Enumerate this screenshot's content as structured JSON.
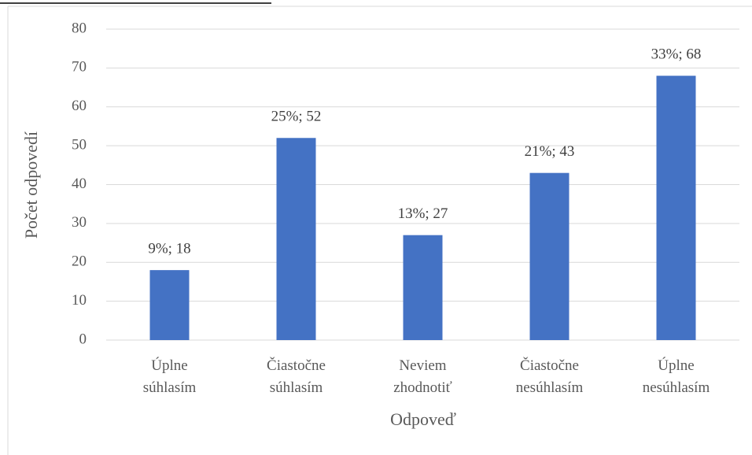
{
  "chart_data": {
    "type": "bar",
    "x_label": "Odpoveď",
    "y_label": "Počet odpovedí",
    "categories": [
      "Úplne súhlasím",
      "Čiastočne súhlasím",
      "Neviem zhodnotiť",
      "Čiastočne nesúhlasím",
      "Úplne nesúhlasím"
    ],
    "values": [
      18,
      52,
      27,
      43,
      68
    ],
    "value_labels": [
      "9%; 18",
      "25%; 52",
      "13%; 27",
      "21%; 43",
      "33%; 68"
    ],
    "color": "#4472c4",
    "ylim": [
      0,
      80
    ],
    "yticks": [
      0,
      10,
      20,
      30,
      40,
      50,
      60,
      70,
      80
    ],
    "grid": true
  }
}
